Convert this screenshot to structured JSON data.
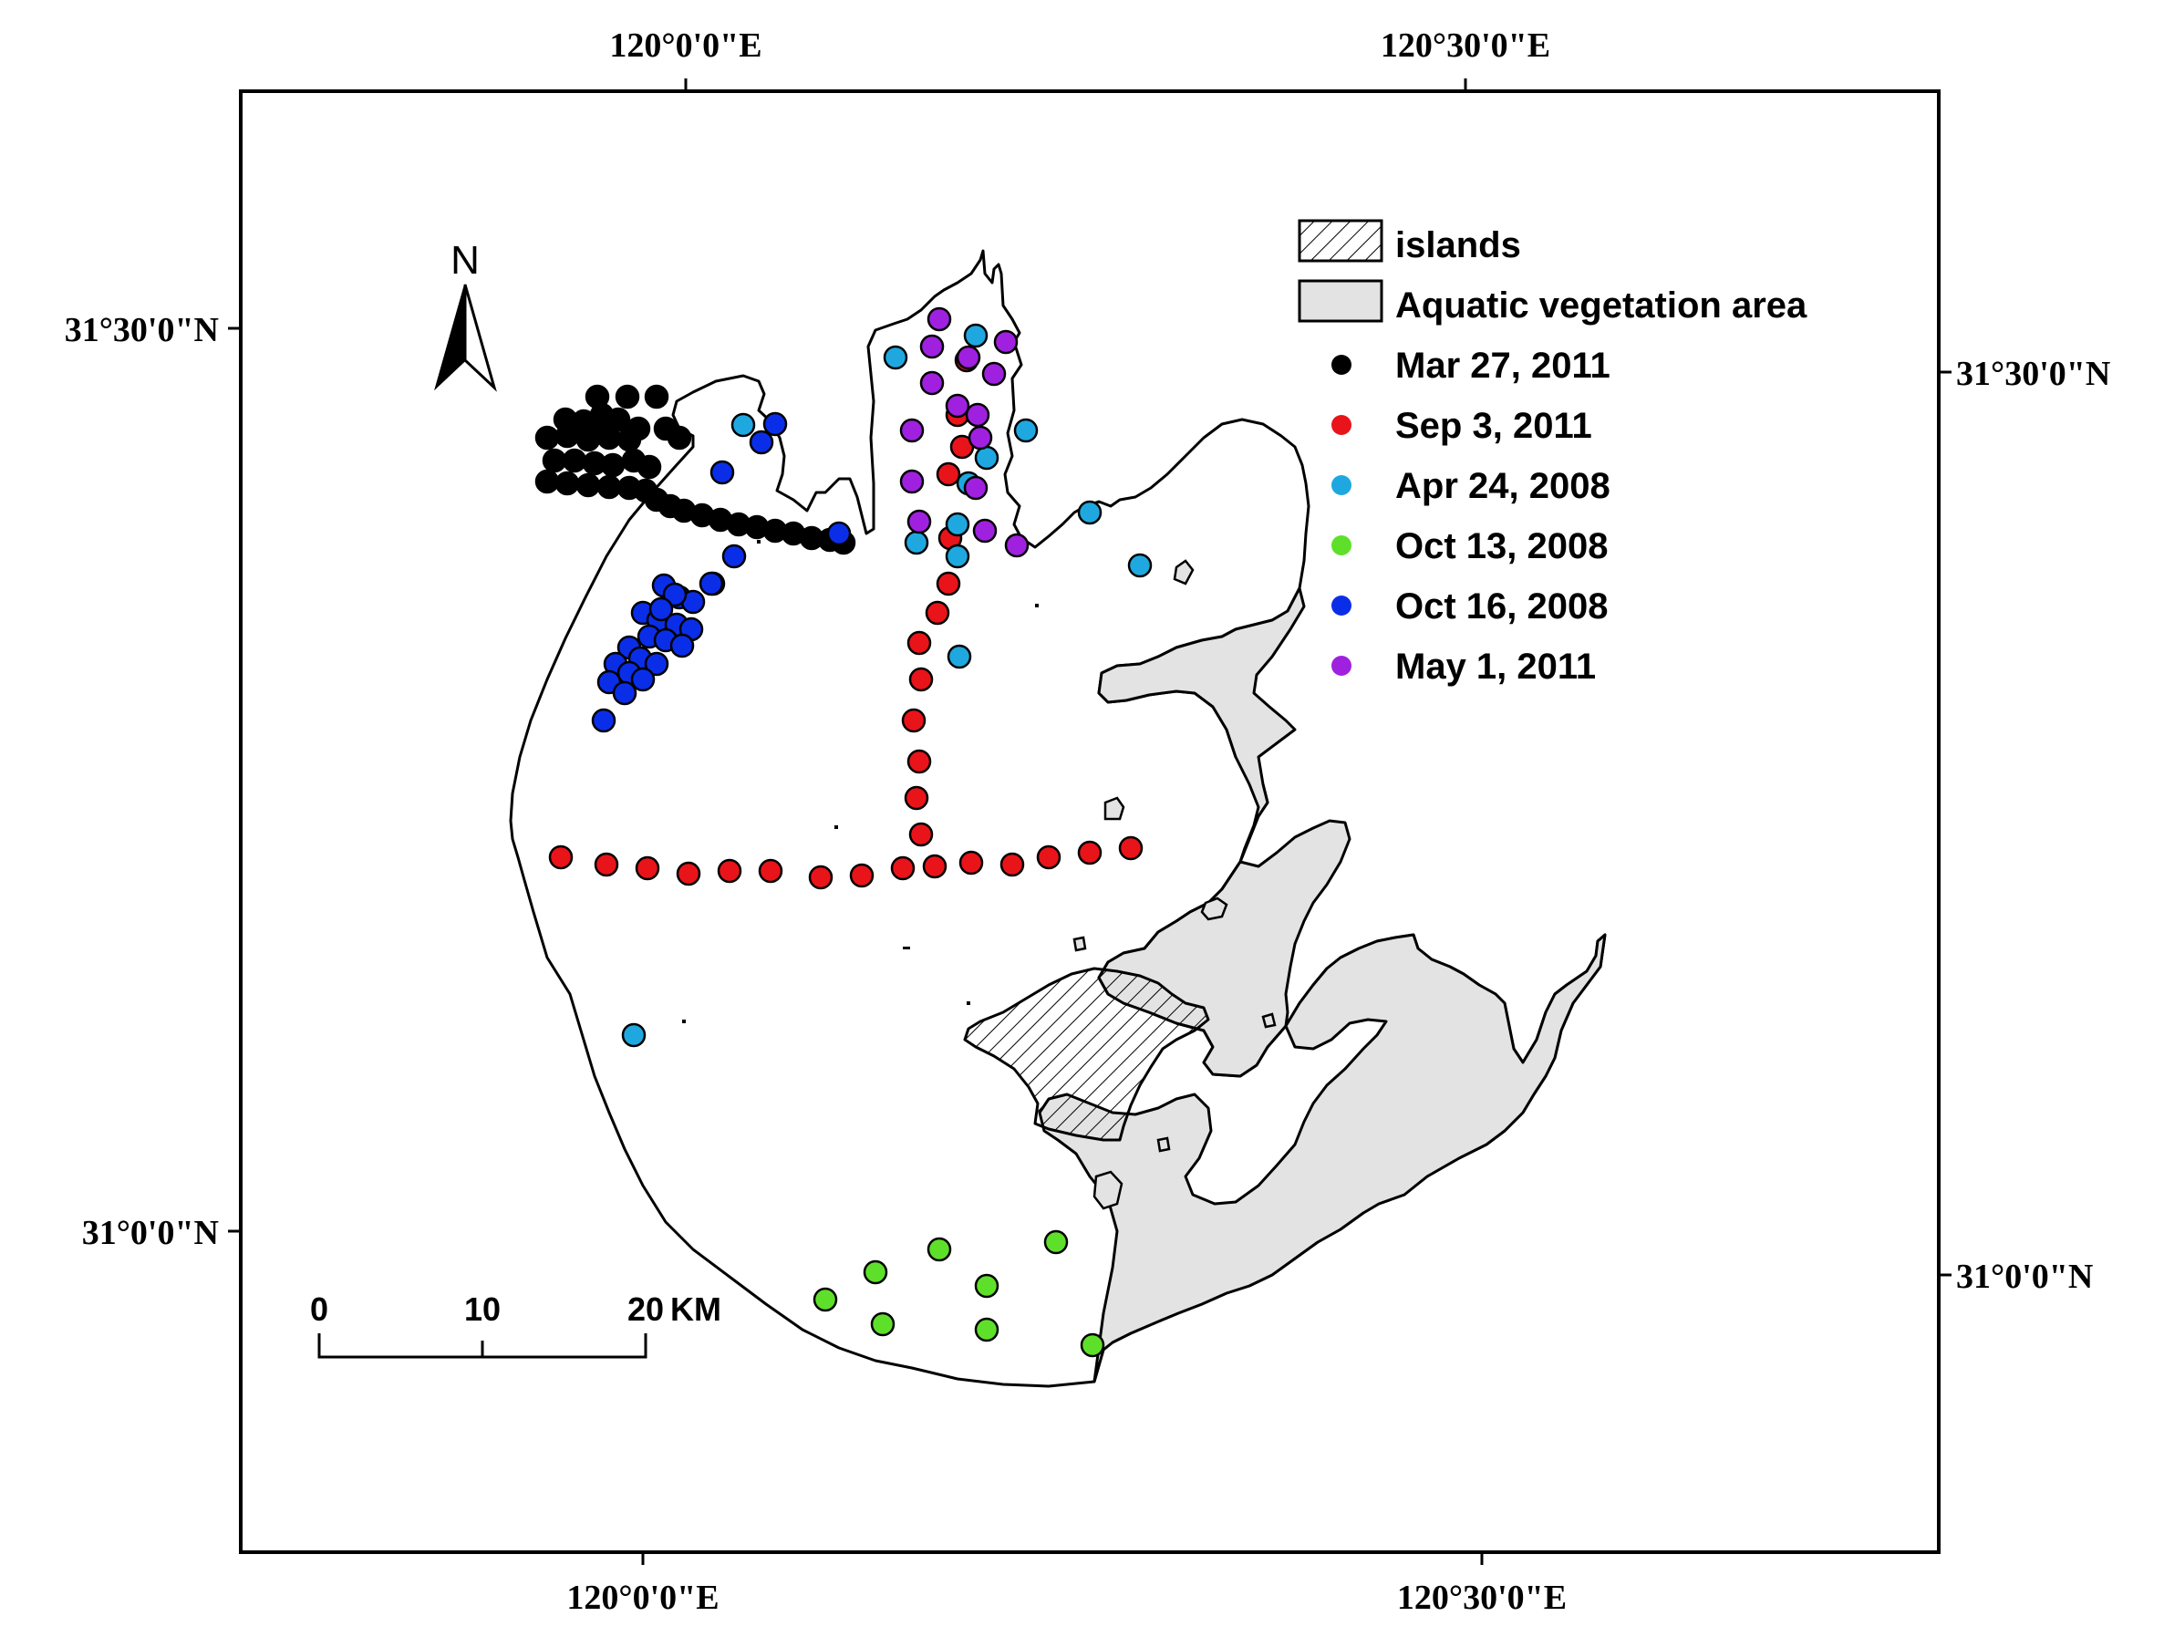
{
  "coordinates": {
    "top_lon": [
      "120°0'0\"E",
      "120°30'0\"E"
    ],
    "bottom_lon": [
      "120°0'0\"E",
      "120°30'0\"E"
    ],
    "left_lat": [
      "31°30'0\"N",
      "31°0'0\"N"
    ],
    "right_lat": [
      "31°30'0\"N",
      "31°0'0\"N"
    ]
  },
  "north_arrow": {
    "label": "N",
    "icon": "north-arrow-icon"
  },
  "scale_bar": {
    "ticks": [
      "0",
      "10",
      "20"
    ],
    "unit": "KM"
  },
  "legend": {
    "islands": "islands",
    "vegetation": "Aquatic vegetation area",
    "series": [
      {
        "label": "Mar 27, 2011",
        "color": "#000000"
      },
      {
        "label": "Sep 3, 2011",
        "color": "#e8141a"
      },
      {
        "label": "Apr 24, 2008",
        "color": "#1fa8e0"
      },
      {
        "label": "Oct 13, 2008",
        "color": "#5ee02a"
      },
      {
        "label": "Oct 16, 2008",
        "color": "#0a2ee8"
      },
      {
        "label": "May 1, 2011",
        "color": "#a020e0"
      }
    ]
  },
  "sampling_points": {
    "Mar 27, 2011": [
      [
        655,
        435
      ],
      [
        688,
        435
      ],
      [
        720,
        435
      ],
      [
        620,
        460
      ],
      [
        640,
        462
      ],
      [
        660,
        455
      ],
      [
        678,
        460
      ],
      [
        600,
        480
      ],
      [
        622,
        478
      ],
      [
        645,
        482
      ],
      [
        668,
        480
      ],
      [
        690,
        482
      ],
      [
        608,
        505
      ],
      [
        630,
        505
      ],
      [
        652,
        508
      ],
      [
        672,
        510
      ],
      [
        695,
        505
      ],
      [
        712,
        512
      ],
      [
        600,
        528
      ],
      [
        622,
        530
      ],
      [
        645,
        532
      ],
      [
        668,
        534
      ],
      [
        690,
        535
      ],
      [
        708,
        538
      ],
      [
        720,
        548
      ],
      [
        735,
        555
      ],
      [
        750,
        560
      ],
      [
        770,
        565
      ],
      [
        790,
        570
      ],
      [
        810,
        575
      ],
      [
        830,
        578
      ],
      [
        850,
        582
      ],
      [
        870,
        585
      ],
      [
        890,
        590
      ],
      [
        910,
        592
      ],
      [
        925,
        595
      ],
      [
        660,
        470
      ],
      [
        700,
        470
      ],
      [
        730,
        470
      ],
      [
        745,
        480
      ]
    ],
    "Sep 3, 2011": [
      [
        615,
        940
      ],
      [
        665,
        948
      ],
      [
        710,
        952
      ],
      [
        755,
        958
      ],
      [
        800,
        955
      ],
      [
        845,
        955
      ],
      [
        900,
        962
      ],
      [
        945,
        960
      ],
      [
        990,
        952
      ],
      [
        1025,
        950
      ],
      [
        1065,
        946
      ],
      [
        1110,
        948
      ],
      [
        1150,
        940
      ],
      [
        1195,
        935
      ],
      [
        1240,
        930
      ],
      [
        1010,
        915
      ],
      [
        1005,
        875
      ],
      [
        1008,
        835
      ],
      [
        1002,
        790
      ],
      [
        1010,
        745
      ],
      [
        1008,
        705
      ],
      [
        1028,
        672
      ],
      [
        1040,
        640
      ],
      [
        1042,
        590
      ],
      [
        1040,
        520
      ],
      [
        1055,
        490
      ],
      [
        1060,
        395
      ],
      [
        1050,
        455
      ]
    ],
    "Apr 24, 2008": [
      [
        982,
        392
      ],
      [
        1070,
        368
      ],
      [
        1082,
        502
      ],
      [
        1062,
        530
      ],
      [
        1050,
        575
      ],
      [
        1005,
        595
      ],
      [
        1050,
        610
      ],
      [
        1125,
        472
      ],
      [
        1195,
        562
      ],
      [
        1250,
        620
      ],
      [
        815,
        466
      ],
      [
        782,
        640
      ],
      [
        1052,
        720
      ],
      [
        695,
        1135
      ]
    ],
    "Oct 13, 2008": [
      [
        905,
        1425
      ],
      [
        960,
        1395
      ],
      [
        1030,
        1370
      ],
      [
        1082,
        1410
      ],
      [
        1158,
        1362
      ],
      [
        968,
        1452
      ],
      [
        1082,
        1458
      ],
      [
        1198,
        1475
      ]
    ],
    "Oct 16, 2008": [
      [
        850,
        465
      ],
      [
        792,
        518
      ],
      [
        835,
        485
      ],
      [
        920,
        585
      ],
      [
        805,
        610
      ],
      [
        780,
        640
      ],
      [
        728,
        642
      ],
      [
        745,
        655
      ],
      [
        760,
        660
      ],
      [
        705,
        672
      ],
      [
        722,
        680
      ],
      [
        742,
        685
      ],
      [
        758,
        690
      ],
      [
        712,
        698
      ],
      [
        730,
        702
      ],
      [
        748,
        708
      ],
      [
        690,
        710
      ],
      [
        702,
        722
      ],
      [
        720,
        728
      ],
      [
        675,
        728
      ],
      [
        690,
        738
      ],
      [
        705,
        745
      ],
      [
        668,
        748
      ],
      [
        685,
        760
      ],
      [
        662,
        790
      ],
      [
        740,
        652
      ],
      [
        725,
        668
      ]
    ],
    "May 1, 2011": [
      [
        1030,
        350
      ],
      [
        1022,
        380
      ],
      [
        1062,
        392
      ],
      [
        1103,
        375
      ],
      [
        1090,
        410
      ],
      [
        1022,
        420
      ],
      [
        1050,
        445
      ],
      [
        1072,
        455
      ],
      [
        1000,
        472
      ],
      [
        1075,
        480
      ],
      [
        1000,
        528
      ],
      [
        1070,
        535
      ],
      [
        1008,
        572
      ],
      [
        1080,
        582
      ],
      [
        1115,
        598
      ]
    ]
  }
}
